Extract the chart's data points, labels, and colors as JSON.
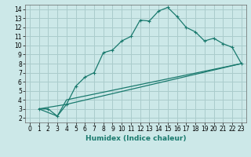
{
  "xlabel": "Humidex (Indice chaleur)",
  "bg_color": "#cce8e8",
  "grid_color": "#aacccc",
  "line_color": "#1a7a6e",
  "xlim": [
    -0.5,
    23.5
  ],
  "ylim": [
    1.5,
    14.5
  ],
  "xticks": [
    0,
    1,
    2,
    3,
    4,
    5,
    6,
    7,
    8,
    9,
    10,
    11,
    12,
    13,
    14,
    15,
    16,
    17,
    18,
    19,
    20,
    21,
    22,
    23
  ],
  "yticks": [
    2,
    3,
    4,
    5,
    6,
    7,
    8,
    9,
    10,
    11,
    12,
    13,
    14
  ],
  "curve1_x": [
    1,
    2,
    3,
    4,
    5,
    6,
    7,
    8,
    9,
    10,
    11,
    12,
    13,
    14,
    15,
    16,
    17,
    18,
    19,
    20,
    21,
    22,
    23
  ],
  "curve1_y": [
    3.0,
    3.0,
    2.2,
    3.5,
    5.5,
    6.5,
    7.0,
    9.2,
    9.5,
    10.5,
    11.0,
    12.8,
    12.7,
    13.8,
    14.2,
    13.2,
    12.0,
    11.5,
    10.5,
    10.8,
    10.2,
    9.8,
    8.0
  ],
  "curve2_x": [
    1,
    3,
    4,
    23
  ],
  "curve2_y": [
    3.0,
    2.2,
    4.0,
    8.0
  ],
  "curve3_x": [
    1,
    4,
    23
  ],
  "curve3_y": [
    3.0,
    3.5,
    8.0
  ],
  "tick_fontsize": 5.5,
  "xlabel_fontsize": 6.5
}
